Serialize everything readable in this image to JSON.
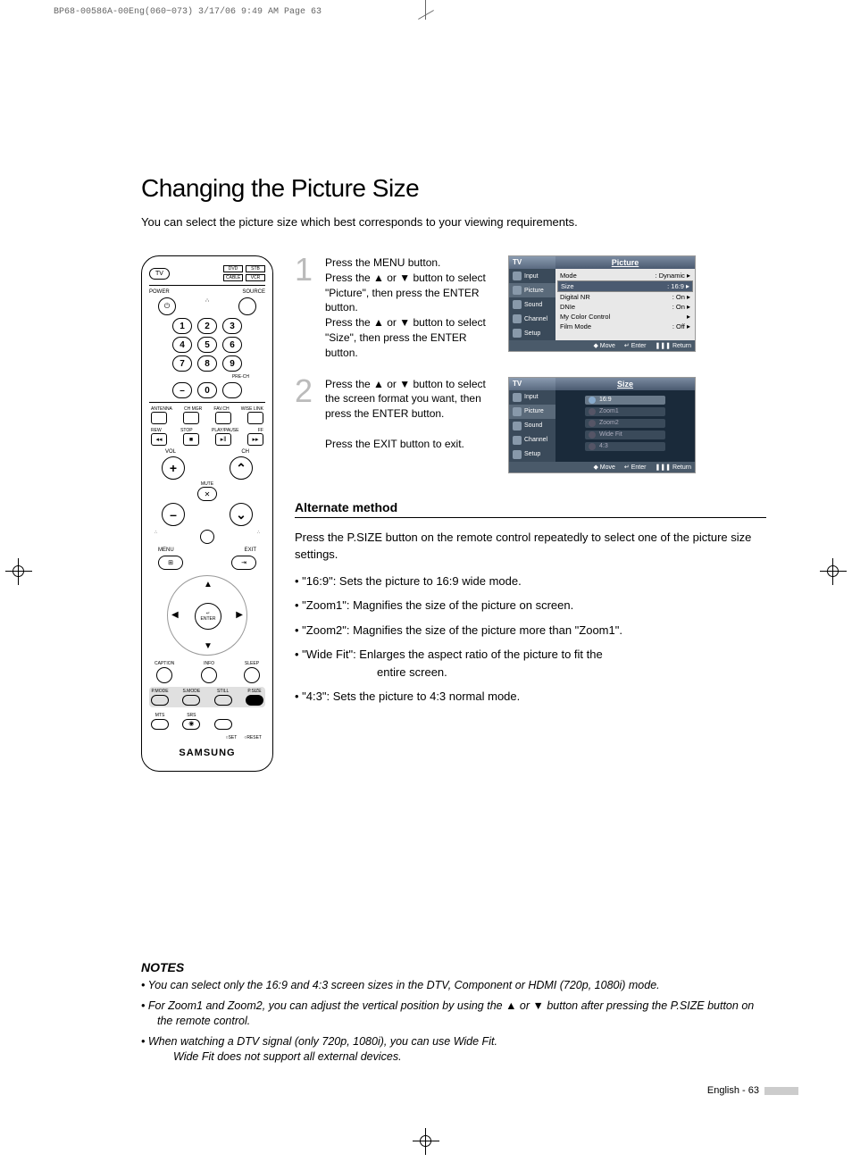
{
  "meta": {
    "header": "BP68-00586A-00Eng(060~073)  3/17/06  9:49 AM  Page 63"
  },
  "page": {
    "title": "Changing the Picture Size",
    "intro": "You can select the picture size which best corresponds to your viewing requirements.",
    "footer": "English - 63"
  },
  "steps": {
    "s1": {
      "num": "1",
      "text": "Press the MENU button.\nPress the ▲ or ▼ button to select \"Picture\", then press the ENTER button.\nPress the ▲ or ▼ button to select \"Size\", then press the ENTER button."
    },
    "s2": {
      "num": "2",
      "text": "Press the ▲ or ▼ button to select the screen format you want, then press the ENTER button.\n\nPress the EXIT button to exit."
    }
  },
  "osd1": {
    "tv": "TV",
    "title": "Picture",
    "side": [
      "Input",
      "Picture",
      "Sound",
      "Channel",
      "Setup"
    ],
    "rows": [
      {
        "l": "Mode",
        "r": ": Dynamic"
      },
      {
        "l": "Size",
        "r": ": 16:9",
        "hl": true
      },
      {
        "l": "Digital NR",
        "r": ": On"
      },
      {
        "l": "DNIe",
        "r": ": On"
      },
      {
        "l": "My Color Control",
        "r": ""
      },
      {
        "l": "Film Mode",
        "r": ": Off"
      }
    ],
    "foot": {
      "move": "Move",
      "enter": "Enter",
      "ret": "Return"
    }
  },
  "osd2": {
    "tv": "TV",
    "title": "Size",
    "side": [
      "Input",
      "Picture",
      "Sound",
      "Channel",
      "Setup"
    ],
    "opts": [
      "16:9",
      "Zoom1",
      "Zoom2",
      "Wide Fit",
      "4:3"
    ],
    "foot": {
      "move": "Move",
      "enter": "Enter",
      "ret": "Return"
    }
  },
  "alt": {
    "header": "Alternate method",
    "intro": "Press the P.SIZE button on the remote control repeatedly to select one of the picture size settings.",
    "items": [
      "\"16:9\": Sets the picture to 16:9 wide mode.",
      "\"Zoom1\": Magnifies the size of the picture on screen.",
      "\"Zoom2\": Magnifies the size of the picture more than \"Zoom1\".",
      "\"Wide Fit\": Enlarges the aspect ratio of the picture to fit the",
      "\"4:3\": Sets the picture to 4:3 normal mode."
    ],
    "wf_cont": "entire screen."
  },
  "notes": {
    "title": "NOTES",
    "n1": "You can select only the 16:9 and 4:3 screen sizes in the DTV, Component or HDMI (720p, 1080i) mode.",
    "n2": "For Zoom1 and Zoom2, you can adjust the vertical position by using the ▲ or ▼ button after pressing the P.SIZE button on the remote control.",
    "n3a": "When watching a DTV signal (only 720p, 1080i), you can use Wide Fit.",
    "n3b": "Wide Fit does not support all external devices."
  },
  "remote": {
    "tv": "TV",
    "dvd": "DVD",
    "stb": "STB",
    "cable": "CABLE",
    "vcr": "VCR",
    "power": "POWER",
    "source": "SOURCE",
    "prech": "PRE-CH",
    "antenna": "ANTENNA",
    "chmgr": "CH MGR",
    "favch": "FAV.CH",
    "wiselink": "WISE LINK",
    "rew": "REW",
    "stop": "STOP",
    "play": "PLAY/PAUSE",
    "ff": "FF",
    "vol": "VOL",
    "ch": "CH",
    "mute": "MUTE",
    "menu": "MENU",
    "exit": "EXIT",
    "enter": "ENTER",
    "caption": "CAPTION",
    "info": "INFO",
    "sleep": "SLEEP",
    "pmode": "P.MODE",
    "smode": "S.MODE",
    "still": "STILL",
    "psize": "P.SIZE",
    "mts": "MTS",
    "srs": "SRS",
    "set": "○SET",
    "reset": "○RESET",
    "brand": "SAMSUNG"
  }
}
